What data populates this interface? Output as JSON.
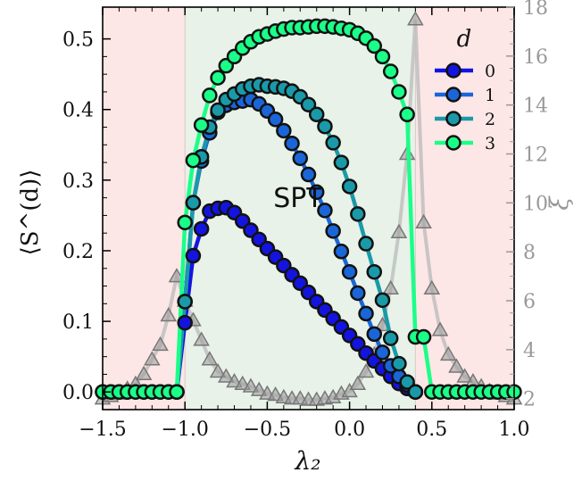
{
  "chart_data": {
    "type": "line",
    "xlabel": "λ₂",
    "ylabel": "⟨S^(d)⟩",
    "y2label": "ξ",
    "xlim": [
      -1.5,
      1.0
    ],
    "ylim": [
      -0.025,
      0.545
    ],
    "y2lim": [
      1.55,
      18.0
    ],
    "x_ticks": [
      -1.5,
      -1.0,
      -0.5,
      0.0,
      0.5,
      1.0
    ],
    "x_tick_labels": [
      "−1.5",
      "−1.0",
      "−0.5",
      "0.0",
      "0.5",
      "1.0"
    ],
    "y_ticks": [
      0.0,
      0.1,
      0.2,
      0.3,
      0.4,
      0.5
    ],
    "y_tick_labels": [
      "0.0",
      "0.1",
      "0.2",
      "0.3",
      "0.4",
      "0.5"
    ],
    "y2_ticks": [
      2,
      4,
      6,
      8,
      10,
      12,
      14,
      16,
      18
    ],
    "y2_tick_labels": [
      "2",
      "4",
      "6",
      "8",
      "10",
      "12",
      "14",
      "16",
      "18"
    ],
    "grid": false,
    "legend": {
      "title": "d",
      "placement": "top-right"
    },
    "regions": [
      {
        "x0": -1.5,
        "x1": -1.0,
        "color": "#fde6e6"
      },
      {
        "x0": -1.0,
        "x1": 0.4,
        "color": "#e8f2e8",
        "label": "SPT"
      },
      {
        "x0": 0.4,
        "x1": 1.0,
        "color": "#fde6e6"
      }
    ],
    "series": [
      {
        "name": "0",
        "color": "#1414e0",
        "x": [
          -1.5,
          -1.45,
          -1.4,
          -1.35,
          -1.3,
          -1.25,
          -1.2,
          -1.15,
          -1.1,
          -1.05,
          -1.0,
          -0.95,
          -0.9,
          -0.85,
          -0.8,
          -0.75,
          -0.7,
          -0.65,
          -0.6,
          -0.55,
          -0.5,
          -0.45,
          -0.4,
          -0.35,
          -0.3,
          -0.25,
          -0.2,
          -0.15,
          -0.1,
          -0.05,
          0.0,
          0.05,
          0.1,
          0.15,
          0.2,
          0.25,
          0.3,
          0.35,
          0.4
        ],
        "values": [
          0,
          0,
          0,
          0,
          0,
          0,
          0,
          0,
          0,
          0,
          0.098,
          0.193,
          0.231,
          0.256,
          0.26,
          0.261,
          0.254,
          0.242,
          0.229,
          0.216,
          0.203,
          0.191,
          0.179,
          0.166,
          0.154,
          0.141,
          0.128,
          0.116,
          0.104,
          0.092,
          0.08,
          0.068,
          0.055,
          0.044,
          0.033,
          0.022,
          0.012,
          0.005,
          0.0
        ]
      },
      {
        "name": "1",
        "color": "#1a66d9",
        "x": [
          -1.05,
          -1.0,
          -0.95,
          -0.9,
          -0.85,
          -0.8,
          -0.75,
          -0.7,
          -0.65,
          -0.6,
          -0.55,
          -0.5,
          -0.45,
          -0.4,
          -0.35,
          -0.3,
          -0.25,
          -0.2,
          -0.15,
          -0.1,
          -0.05,
          0.0,
          0.05,
          0.1,
          0.15,
          0.2,
          0.25,
          0.3,
          0.35,
          0.4
        ],
        "values": [
          0,
          0.128,
          0.268,
          0.327,
          0.367,
          0.396,
          0.406,
          0.41,
          0.412,
          0.414,
          0.408,
          0.398,
          0.386,
          0.37,
          0.352,
          0.331,
          0.308,
          0.283,
          0.257,
          0.228,
          0.199,
          0.17,
          0.14,
          0.111,
          0.082,
          0.056,
          0.037,
          0.022,
          0.01,
          0.0
        ]
      },
      {
        "name": "2",
        "color": "#1a9aa8",
        "x": [
          -1.05,
          -1.0,
          -0.95,
          -0.9,
          -0.85,
          -0.8,
          -0.75,
          -0.7,
          -0.65,
          -0.6,
          -0.55,
          -0.5,
          -0.45,
          -0.4,
          -0.35,
          -0.3,
          -0.25,
          -0.2,
          -0.15,
          -0.1,
          -0.05,
          0.0,
          0.05,
          0.1,
          0.15,
          0.2,
          0.25,
          0.3,
          0.35,
          0.4
        ],
        "values": [
          0,
          0.128,
          0.268,
          0.333,
          0.375,
          0.399,
          0.414,
          0.422,
          0.429,
          0.433,
          0.435,
          0.433,
          0.432,
          0.43,
          0.426,
          0.418,
          0.407,
          0.393,
          0.376,
          0.353,
          0.325,
          0.291,
          0.252,
          0.21,
          0.17,
          0.13,
          0.076,
          0.04,
          0.014,
          0.0
        ]
      },
      {
        "name": "3",
        "color": "#1aff88",
        "x": [
          -1.5,
          -1.45,
          -1.4,
          -1.35,
          -1.3,
          -1.25,
          -1.2,
          -1.15,
          -1.1,
          -1.05,
          -1.0,
          -0.95,
          -0.9,
          -0.85,
          -0.8,
          -0.75,
          -0.7,
          -0.65,
          -0.6,
          -0.55,
          -0.5,
          -0.45,
          -0.4,
          -0.35,
          -0.3,
          -0.25,
          -0.2,
          -0.15,
          -0.1,
          -0.05,
          0.0,
          0.05,
          0.1,
          0.15,
          0.2,
          0.25,
          0.3,
          0.35,
          0.4,
          0.45,
          0.5,
          0.55,
          0.6,
          0.65,
          0.7,
          0.75,
          0.8,
          0.85,
          0.9,
          0.95,
          1.0
        ],
        "values": [
          0,
          0,
          0,
          0,
          0,
          0,
          0,
          0,
          0,
          0,
          0.24,
          0.328,
          0.378,
          0.42,
          0.445,
          0.462,
          0.475,
          0.487,
          0.496,
          0.503,
          0.507,
          0.511,
          0.514,
          0.516,
          0.516,
          0.517,
          0.518,
          0.518,
          0.517,
          0.515,
          0.513,
          0.508,
          0.501,
          0.49,
          0.475,
          0.454,
          0.425,
          0.393,
          0.078,
          0.078,
          0,
          0,
          0,
          0,
          0,
          0,
          0,
          0,
          0,
          0,
          0
        ]
      }
    ],
    "xi_series": {
      "color": "#8a8a8a",
      "x": [
        -1.5,
        -1.45,
        -1.4,
        -1.35,
        -1.3,
        -1.25,
        -1.2,
        -1.15,
        -1.1,
        -1.05,
        -1.0,
        -0.95,
        -0.9,
        -0.85,
        -0.8,
        -0.75,
        -0.7,
        -0.65,
        -0.6,
        -0.55,
        -0.5,
        -0.45,
        -0.4,
        -0.35,
        -0.3,
        -0.25,
        -0.2,
        -0.15,
        -0.1,
        -0.05,
        0.0,
        0.05,
        0.1,
        0.15,
        0.2,
        0.25,
        0.3,
        0.35,
        0.4,
        0.45,
        0.5,
        0.55,
        0.6,
        0.65,
        0.7,
        0.75,
        0.8,
        0.85,
        0.9,
        0.95,
        1.0
      ],
      "values": [
        2.0,
        2.1,
        2.2,
        2.4,
        2.6,
        3.0,
        3.6,
        4.2,
        5.4,
        7.0,
        6.0,
        5.2,
        4.4,
        3.6,
        3.1,
        2.9,
        2.7,
        2.6,
        2.5,
        2.35,
        2.2,
        2.15,
        2.05,
        2.0,
        2.0,
        1.95,
        1.95,
        2.0,
        2.05,
        2.2,
        2.3,
        2.6,
        3.1,
        3.8,
        5.0,
        6.5,
        8.8,
        12.0,
        17.5,
        9.2,
        6.5,
        4.8,
        3.8,
        3.3,
        2.9,
        2.7,
        2.5,
        2.3,
        2.2,
        2.1,
        2.0
      ]
    }
  }
}
